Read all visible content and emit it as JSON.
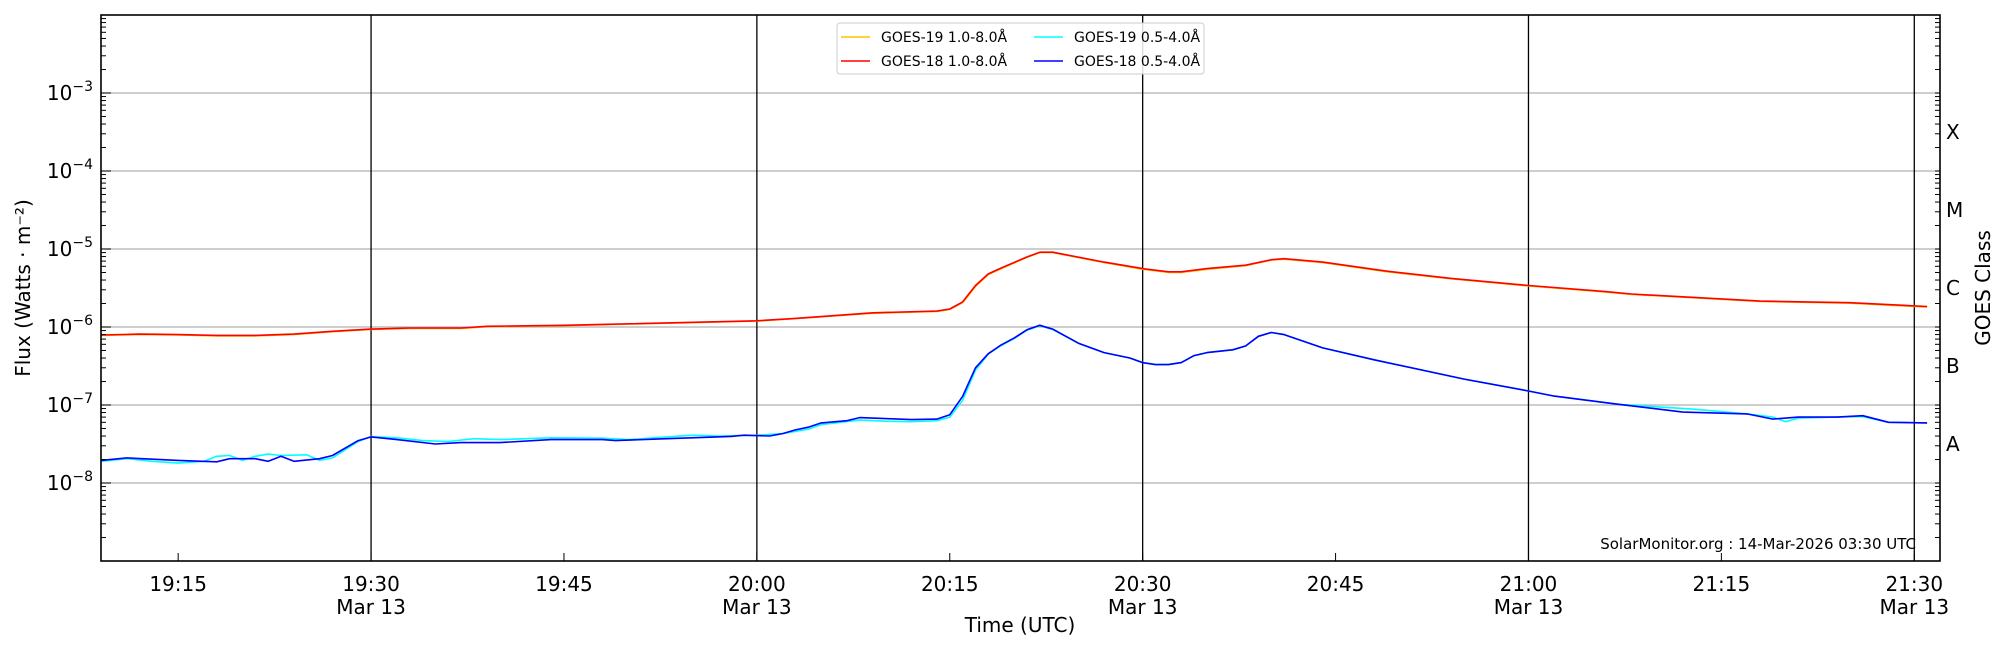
{
  "chart_data": {
    "type": "line",
    "title": "",
    "xlabel": "Time (UTC)",
    "ylabel": "Flux (Watts · m⁻²)",
    "y2label": "GOES Class",
    "yscale": "log",
    "ylim": [
      1e-09,
      0.01
    ],
    "xlim": [
      "19:09",
      "21:32"
    ],
    "grid": "horizontal at decades; vertical black lines at half hours",
    "legend_placement": "top-center",
    "x_ticks": [
      {
        "time": "19:15",
        "label": "19:15",
        "date": ""
      },
      {
        "time": "19:30",
        "label": "19:30",
        "date": "Mar 13"
      },
      {
        "time": "19:45",
        "label": "19:45",
        "date": ""
      },
      {
        "time": "20:00",
        "label": "20:00",
        "date": "Mar 13"
      },
      {
        "time": "20:15",
        "label": "20:15",
        "date": ""
      },
      {
        "time": "20:30",
        "label": "20:30",
        "date": "Mar 13"
      },
      {
        "time": "20:45",
        "label": "20:45",
        "date": ""
      },
      {
        "time": "21:00",
        "label": "21:00",
        "date": "Mar 13"
      },
      {
        "time": "21:15",
        "label": "21:15",
        "date": ""
      },
      {
        "time": "21:30",
        "label": "21:30",
        "date": "Mar 13"
      }
    ],
    "vlines": [
      "19:30",
      "20:00",
      "20:30",
      "21:00",
      "21:30"
    ],
    "y_ticks": [
      {
        "value": 1e-08,
        "base": "10",
        "exp": "−8"
      },
      {
        "value": 1e-07,
        "base": "10",
        "exp": "−7"
      },
      {
        "value": 1e-06,
        "base": "10",
        "exp": "−6"
      },
      {
        "value": 1e-05,
        "base": "10",
        "exp": "−5"
      },
      {
        "value": 0.0001,
        "base": "10",
        "exp": "−4"
      },
      {
        "value": 0.001,
        "base": "10",
        "exp": "−3"
      }
    ],
    "goes_classes": [
      {
        "label": "A",
        "value": 3.16e-08
      },
      {
        "label": "B",
        "value": 3.16e-07
      },
      {
        "label": "C",
        "value": 3.16e-06
      },
      {
        "label": "M",
        "value": 3.16e-05
      },
      {
        "label": "X",
        "value": 0.000316
      }
    ],
    "annotation": "SolarMonitor.org : 14-Mar-2026 03:30 UTC",
    "series": [
      {
        "name": "GOES-19 1.0-8.0Å",
        "color": "#ffc000",
        "points": [
          [
            "19:09",
            7.8e-07
          ],
          [
            "19:12",
            8e-07
          ],
          [
            "19:15",
            7.9e-07
          ],
          [
            "19:18",
            7.7e-07
          ],
          [
            "19:21",
            7.7e-07
          ],
          [
            "19:24",
            8e-07
          ],
          [
            "19:27",
            8.7e-07
          ],
          [
            "19:30",
            9.3e-07
          ],
          [
            "19:33",
            9.6e-07
          ],
          [
            "19:37",
            9.6e-07
          ],
          [
            "19:39",
            1.01e-06
          ],
          [
            "19:45",
            1.04e-06
          ],
          [
            "19:48",
            1.07e-06
          ],
          [
            "20:00",
            1.19e-06
          ],
          [
            "20:03",
            1.28e-06
          ],
          [
            "20:09",
            1.5e-06
          ],
          [
            "20:14",
            1.58e-06
          ],
          [
            "20:15",
            1.68e-06
          ],
          [
            "20:16",
            2.05e-06
          ],
          [
            "20:17",
            3.3e-06
          ],
          [
            "20:18",
            4.7e-06
          ],
          [
            "20:19",
            5.6e-06
          ],
          [
            "20:21",
            7.8e-06
          ],
          [
            "20:22",
            9e-06
          ],
          [
            "20:23",
            9e-06
          ],
          [
            "20:27",
            6.7e-06
          ],
          [
            "20:30",
            5.5e-06
          ],
          [
            "20:32",
            5e-06
          ],
          [
            "20:33",
            5e-06
          ],
          [
            "20:35",
            5.5e-06
          ],
          [
            "20:38",
            6.1e-06
          ],
          [
            "20:40",
            7.2e-06
          ],
          [
            "20:41",
            7.4e-06
          ],
          [
            "20:44",
            6.7e-06
          ],
          [
            "20:49",
            5.1e-06
          ],
          [
            "20:54",
            4.15e-06
          ],
          [
            "21:00",
            3.35e-06
          ],
          [
            "21:06",
            2.8e-06
          ],
          [
            "21:08",
            2.62e-06
          ],
          [
            "21:18",
            2.12e-06
          ],
          [
            "21:25",
            2.02e-06
          ],
          [
            "21:31",
            1.8e-06
          ]
        ]
      },
      {
        "name": "GOES-18 1.0-8.0Å",
        "color": "#ff0000",
        "points": [
          [
            "19:09",
            7.9e-07
          ],
          [
            "19:12",
            8.1e-07
          ],
          [
            "19:15",
            8e-07
          ],
          [
            "19:18",
            7.8e-07
          ],
          [
            "19:21",
            7.8e-07
          ],
          [
            "19:24",
            8.1e-07
          ],
          [
            "19:27",
            8.8e-07
          ],
          [
            "19:30",
            9.4e-07
          ],
          [
            "19:33",
            9.7e-07
          ],
          [
            "19:37",
            9.7e-07
          ],
          [
            "19:39",
            1.02e-06
          ],
          [
            "19:45",
            1.05e-06
          ],
          [
            "19:48",
            1.08e-06
          ],
          [
            "20:00",
            1.2e-06
          ],
          [
            "20:03",
            1.29e-06
          ],
          [
            "20:09",
            1.52e-06
          ],
          [
            "20:14",
            1.6e-06
          ],
          [
            "20:15",
            1.7e-06
          ],
          [
            "20:16",
            2.1e-06
          ],
          [
            "20:17",
            3.4e-06
          ],
          [
            "20:18",
            4.8e-06
          ],
          [
            "20:19",
            5.7e-06
          ],
          [
            "20:21",
            7.9e-06
          ],
          [
            "20:22",
            9.1e-06
          ],
          [
            "20:23",
            9.1e-06
          ],
          [
            "20:27",
            6.8e-06
          ],
          [
            "20:30",
            5.6e-06
          ],
          [
            "20:32",
            5.1e-06
          ],
          [
            "20:33",
            5.1e-06
          ],
          [
            "20:35",
            5.6e-06
          ],
          [
            "20:38",
            6.2e-06
          ],
          [
            "20:40",
            7.3e-06
          ],
          [
            "20:41",
            7.5e-06
          ],
          [
            "20:44",
            6.8e-06
          ],
          [
            "20:49",
            5.2e-06
          ],
          [
            "20:54",
            4.2e-06
          ],
          [
            "21:00",
            3.4e-06
          ],
          [
            "21:06",
            2.84e-06
          ],
          [
            "21:08",
            2.65e-06
          ],
          [
            "21:18",
            2.15e-06
          ],
          [
            "21:25",
            2.05e-06
          ],
          [
            "21:31",
            1.83e-06
          ]
        ]
      },
      {
        "name": "GOES-19 0.5-4.0Å",
        "color": "#00ffff",
        "points": [
          [
            "19:09",
            1.9e-08
          ],
          [
            "19:11",
            2.05e-08
          ],
          [
            "19:13",
            1.9e-08
          ],
          [
            "19:15",
            1.8e-08
          ],
          [
            "19:17",
            1.9e-08
          ],
          [
            "19:18",
            2.2e-08
          ],
          [
            "19:19",
            2.25e-08
          ],
          [
            "19:20",
            1.95e-08
          ],
          [
            "19:21",
            2.2e-08
          ],
          [
            "19:22",
            2.35e-08
          ],
          [
            "19:23",
            2.25e-08
          ],
          [
            "19:25",
            2.3e-08
          ],
          [
            "19:26",
            1.95e-08
          ],
          [
            "19:27",
            2.1e-08
          ],
          [
            "19:29",
            3.4e-08
          ],
          [
            "19:30",
            3.95e-08
          ],
          [
            "19:32",
            3.8e-08
          ],
          [
            "19:34",
            3.5e-08
          ],
          [
            "19:36",
            3.4e-08
          ],
          [
            "19:38",
            3.7e-08
          ],
          [
            "19:40",
            3.6e-08
          ],
          [
            "19:44",
            3.8e-08
          ],
          [
            "19:48",
            3.75e-08
          ],
          [
            "19:50",
            3.6e-08
          ],
          [
            "19:53",
            3.9e-08
          ],
          [
            "19:55",
            4.1e-08
          ],
          [
            "19:57",
            4e-08
          ],
          [
            "20:00",
            4.1e-08
          ],
          [
            "20:02",
            4.3e-08
          ],
          [
            "20:04",
            4.9e-08
          ],
          [
            "20:05",
            5.6e-08
          ],
          [
            "20:08",
            6.4e-08
          ],
          [
            "20:10",
            6.2e-08
          ],
          [
            "20:12",
            6.1e-08
          ],
          [
            "20:14",
            6.3e-08
          ],
          [
            "20:15",
            7e-08
          ],
          [
            "20:16",
            1.15e-07
          ],
          [
            "20:17",
            2.8e-07
          ],
          [
            "20:18",
            4.5e-07
          ],
          [
            "20:19",
            5.8e-07
          ],
          [
            "20:20",
            7.1e-07
          ],
          [
            "20:21",
            9.1e-07
          ],
          [
            "20:22",
            1.04e-06
          ],
          [
            "20:23",
            9.3e-07
          ],
          [
            "20:25",
            6.2e-07
          ],
          [
            "20:27",
            4.7e-07
          ],
          [
            "20:29",
            4e-07
          ],
          [
            "20:30",
            3.5e-07
          ],
          [
            "20:31",
            3.3e-07
          ],
          [
            "20:32",
            3.3e-07
          ],
          [
            "20:33",
            3.5e-07
          ],
          [
            "20:34",
            4.3e-07
          ],
          [
            "20:35",
            4.7e-07
          ],
          [
            "20:37",
            5.1e-07
          ],
          [
            "20:38",
            5.7e-07
          ],
          [
            "20:39",
            7.6e-07
          ],
          [
            "20:40",
            8.5e-07
          ],
          [
            "20:41",
            8e-07
          ],
          [
            "20:44",
            5.4e-07
          ],
          [
            "20:48",
            3.8e-07
          ],
          [
            "20:55",
            2.15e-07
          ],
          [
            "21:00",
            1.51e-07
          ],
          [
            "21:02",
            1.3e-07
          ],
          [
            "21:07",
            1.02e-07
          ],
          [
            "21:13",
            8.8e-08
          ],
          [
            "21:17",
            7.7e-08
          ],
          [
            "21:19",
            7e-08
          ],
          [
            "21:20",
            6.1e-08
          ],
          [
            "21:21",
            6.8e-08
          ],
          [
            "21:24",
            7e-08
          ],
          [
            "21:26",
            7.1e-08
          ],
          [
            "21:28",
            6e-08
          ],
          [
            "21:31",
            5.9e-08
          ]
        ]
      },
      {
        "name": "GOES-18 0.5-4.0Å",
        "color": "#0000ff",
        "points": [
          [
            "19:09",
            1.95e-08
          ],
          [
            "19:11",
            2.1e-08
          ],
          [
            "19:15",
            1.95e-08
          ],
          [
            "19:18",
            1.87e-08
          ],
          [
            "19:19",
            2.05e-08
          ],
          [
            "19:21",
            2.05e-08
          ],
          [
            "19:22",
            1.9e-08
          ],
          [
            "19:23",
            2.2e-08
          ],
          [
            "19:24",
            1.9e-08
          ],
          [
            "19:26",
            2.05e-08
          ],
          [
            "19:27",
            2.25e-08
          ],
          [
            "19:29",
            3.5e-08
          ],
          [
            "19:30",
            3.9e-08
          ],
          [
            "19:32",
            3.6e-08
          ],
          [
            "19:35",
            3.16e-08
          ],
          [
            "19:37",
            3.3e-08
          ],
          [
            "19:40",
            3.3e-08
          ],
          [
            "19:44",
            3.6e-08
          ],
          [
            "19:48",
            3.6e-08
          ],
          [
            "19:49",
            3.5e-08
          ],
          [
            "19:53",
            3.7e-08
          ],
          [
            "19:58",
            3.96e-08
          ],
          [
            "19:59",
            4.1e-08
          ],
          [
            "20:01",
            4e-08
          ],
          [
            "20:02",
            4.3e-08
          ],
          [
            "20:03",
            4.8e-08
          ],
          [
            "20:04",
            5.2e-08
          ],
          [
            "20:05",
            5.9e-08
          ],
          [
            "20:07",
            6.3e-08
          ],
          [
            "20:08",
            6.9e-08
          ],
          [
            "20:10",
            6.7e-08
          ],
          [
            "20:12",
            6.5e-08
          ],
          [
            "20:14",
            6.6e-08
          ],
          [
            "20:15",
            7.5e-08
          ],
          [
            "20:16",
            1.29e-07
          ],
          [
            "20:17",
            3e-07
          ],
          [
            "20:18",
            4.55e-07
          ],
          [
            "20:19",
            5.9e-07
          ],
          [
            "20:20",
            7.2e-07
          ],
          [
            "20:21",
            9.2e-07
          ],
          [
            "20:22",
            1.05e-06
          ],
          [
            "20:23",
            9.4e-07
          ],
          [
            "20:25",
            6.2e-07
          ],
          [
            "20:27",
            4.7e-07
          ],
          [
            "20:29",
            4e-07
          ],
          [
            "20:30",
            3.5e-07
          ],
          [
            "20:31",
            3.3e-07
          ],
          [
            "20:32",
            3.3e-07
          ],
          [
            "20:33",
            3.5e-07
          ],
          [
            "20:34",
            4.3e-07
          ],
          [
            "20:35",
            4.7e-07
          ],
          [
            "20:37",
            5.1e-07
          ],
          [
            "20:38",
            5.7e-07
          ],
          [
            "20:39",
            7.6e-07
          ],
          [
            "20:40",
            8.5e-07
          ],
          [
            "20:41",
            8e-07
          ],
          [
            "20:44",
            5.4e-07
          ],
          [
            "20:48",
            3.8e-07
          ],
          [
            "20:55",
            2.15e-07
          ],
          [
            "21:00",
            1.51e-07
          ],
          [
            "21:02",
            1.3e-07
          ],
          [
            "21:07",
            1.02e-07
          ],
          [
            "21:12",
            8.1e-08
          ],
          [
            "21:17",
            7.7e-08
          ],
          [
            "21:19",
            6.6e-08
          ],
          [
            "21:21",
            7e-08
          ],
          [
            "21:24",
            7e-08
          ],
          [
            "21:26",
            7.3e-08
          ],
          [
            "21:28",
            6e-08
          ],
          [
            "21:31",
            5.9e-08
          ]
        ]
      }
    ]
  }
}
